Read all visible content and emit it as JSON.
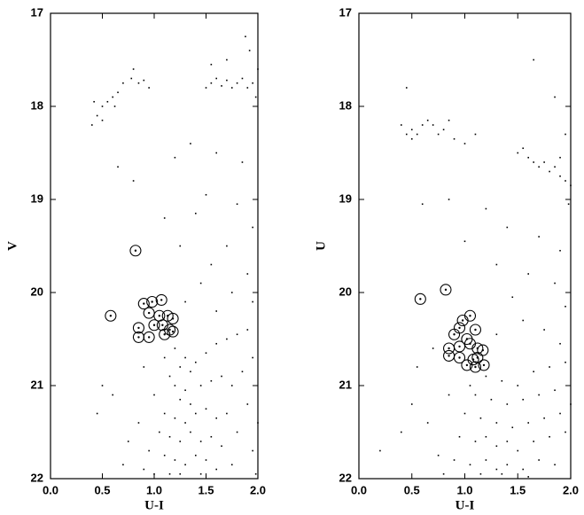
{
  "chart_data": [
    {
      "type": "scatter",
      "x_label": "U-I",
      "y_label": "V",
      "xlim": [
        0,
        2
      ],
      "ylim": [
        17,
        22
      ],
      "y_inverted": true,
      "xticks": [
        {
          "value": 0,
          "label": "0.0"
        },
        0.5,
        {
          "value": 1,
          "label": "1.0"
        },
        1.5,
        {
          "value": 2,
          "label": "2.0"
        }
      ],
      "yticks": [
        17,
        18,
        19,
        20,
        21,
        22
      ],
      "series": [
        {
          "color": "#000000",
          "marker": "dot",
          "x": [
            0.4,
            0.45,
            0.5,
            0.55,
            0.6,
            0.65,
            0.5,
            0.42,
            0.7,
            0.78,
            0.8,
            0.85,
            0.9,
            0.95,
            0.62,
            1.5,
            1.55,
            1.6,
            1.65,
            1.7,
            1.75,
            1.8,
            1.85,
            1.9,
            1.95,
            1.88,
            1.92,
            1.7,
            1.55,
            2.0,
            1.98,
            0.65,
            0.8,
            1.2,
            1.35,
            1.6,
            1.85,
            1.5,
            1.8,
            1.1,
            1.4,
            1.95,
            1.7,
            1.25,
            1.9,
            1.55,
            1.45,
            1.75,
            1.95,
            1.6,
            1.3,
            1.2,
            1.3,
            1.25,
            1.35,
            1.4,
            1.5,
            1.6,
            1.7,
            1.8,
            1.9,
            1.15,
            1.2,
            1.3,
            1.25,
            1.35,
            1.45,
            1.55,
            1.65,
            1.75,
            1.85,
            1.1,
            1.2,
            1.3,
            1.4,
            1.5,
            1.6,
            1.7,
            1.9,
            1.05,
            1.15,
            1.25,
            1.35,
            1.45,
            1.55,
            1.65,
            1.8,
            0.95,
            1.1,
            1.2,
            1.3,
            1.4,
            1.5,
            1.6,
            1.75,
            0.9,
            1.0,
            1.15,
            1.25,
            1.45,
            0.85,
            0.75,
            0.7,
            0.45,
            0.5,
            0.6,
            1.0,
            0.9,
            1.1,
            1.95,
            2.0,
            1.95,
            1.98
          ],
          "y": [
            18.2,
            18.1,
            18.0,
            17.95,
            17.9,
            17.85,
            18.15,
            17.95,
            17.75,
            17.7,
            17.6,
            17.75,
            17.72,
            17.8,
            18.0,
            17.8,
            17.75,
            17.7,
            17.78,
            17.72,
            17.8,
            17.75,
            17.7,
            17.8,
            17.75,
            17.25,
            17.4,
            17.5,
            17.55,
            17.6,
            17.9,
            18.65,
            18.8,
            18.55,
            18.4,
            18.5,
            18.6,
            18.95,
            19.05,
            19.2,
            19.15,
            19.3,
            19.5,
            19.5,
            19.8,
            19.7,
            19.9,
            20.0,
            20.1,
            20.2,
            20.1,
            20.6,
            20.7,
            20.8,
            20.85,
            20.75,
            20.65,
            20.55,
            20.5,
            20.45,
            20.4,
            20.9,
            21.0,
            21.05,
            21.15,
            21.2,
            21.0,
            20.95,
            20.9,
            21.0,
            20.85,
            21.3,
            21.35,
            21.4,
            21.3,
            21.25,
            21.35,
            21.3,
            21.2,
            21.5,
            21.55,
            21.6,
            21.5,
            21.6,
            21.55,
            21.65,
            21.5,
            21.7,
            21.75,
            21.8,
            21.85,
            21.75,
            21.8,
            21.9,
            21.85,
            21.9,
            21.95,
            21.95,
            21.95,
            21.95,
            21.4,
            21.6,
            21.85,
            21.3,
            21.0,
            21.1,
            21.1,
            20.8,
            20.7,
            20.7,
            21.4,
            21.7,
            21.95
          ]
        },
        {
          "color": "#000000",
          "marker": "circled-dot",
          "x": [
            0.82,
            0.58,
            0.9,
            0.98,
            1.07,
            0.95,
            1.05,
            1.13,
            1.18,
            0.85,
            1.0,
            1.08,
            1.15,
            0.85,
            0.95,
            1.1,
            1.18
          ],
          "y": [
            19.55,
            20.25,
            20.12,
            20.1,
            20.08,
            20.22,
            20.25,
            20.25,
            20.28,
            20.38,
            20.35,
            20.35,
            20.4,
            20.48,
            20.48,
            20.45,
            20.42
          ]
        }
      ]
    },
    {
      "type": "scatter",
      "x_label": "U-I",
      "y_label": "U",
      "xlim": [
        0,
        2
      ],
      "ylim": [
        17,
        22
      ],
      "y_inverted": true,
      "xticks": [
        {
          "value": 0,
          "label": "0.0"
        },
        0.5,
        {
          "value": 1,
          "label": "1.0"
        },
        1.5,
        {
          "value": 2,
          "label": "2.0"
        }
      ],
      "yticks": [
        17,
        18,
        19,
        20,
        21,
        22
      ],
      "series": [
        {
          "color": "#000000",
          "marker": "dot",
          "x": [
            0.4,
            0.45,
            0.5,
            0.5,
            0.55,
            0.6,
            0.65,
            0.7,
            0.75,
            0.8,
            0.85,
            0.9,
            1.0,
            0.45,
            1.1,
            1.5,
            1.55,
            1.6,
            1.65,
            1.7,
            1.75,
            1.8,
            1.85,
            1.9,
            1.95,
            2.0,
            1.9,
            1.95,
            1.85,
            1.65,
            1.98,
            0.85,
            1.2,
            0.6,
            1.4,
            1.0,
            1.7,
            1.9,
            1.3,
            1.6,
            1.85,
            1.45,
            1.95,
            1.55,
            1.75,
            1.3,
            1.9,
            0.7,
            0.55,
            1.2,
            1.35,
            1.5,
            1.65,
            1.8,
            1.95,
            1.1,
            1.25,
            1.4,
            1.55,
            1.7,
            1.85,
            1.0,
            1.15,
            1.3,
            1.45,
            1.6,
            1.75,
            1.9,
            0.95,
            1.1,
            1.2,
            1.3,
            1.4,
            1.5,
            1.65,
            1.8,
            1.95,
            0.9,
            1.05,
            1.2,
            1.3,
            1.4,
            1.55,
            1.7,
            1.85,
            0.8,
            1.15,
            1.35,
            1.6,
            0.5,
            0.4,
            0.2,
            0.65,
            0.85,
            0.75,
            1.05,
            2.0
          ],
          "y": [
            18.2,
            18.3,
            18.35,
            18.25,
            18.3,
            18.2,
            18.15,
            18.2,
            18.3,
            18.25,
            18.15,
            18.35,
            18.4,
            17.8,
            18.3,
            18.5,
            18.45,
            18.55,
            18.6,
            18.65,
            18.6,
            18.7,
            18.65,
            18.75,
            18.8,
            18.85,
            18.55,
            18.3,
            17.9,
            17.5,
            19.05,
            19.0,
            19.1,
            19.05,
            19.3,
            19.45,
            19.4,
            19.55,
            19.7,
            19.8,
            19.9,
            20.05,
            20.15,
            20.3,
            20.4,
            20.45,
            20.55,
            20.6,
            20.8,
            20.9,
            20.95,
            21.0,
            20.85,
            20.8,
            20.75,
            21.1,
            21.15,
            21.2,
            21.15,
            21.1,
            21.05,
            21.3,
            21.35,
            21.4,
            21.45,
            21.4,
            21.35,
            21.3,
            21.55,
            21.6,
            21.55,
            21.65,
            21.6,
            21.7,
            21.6,
            21.55,
            21.5,
            21.8,
            21.85,
            21.8,
            21.9,
            21.85,
            21.9,
            21.8,
            21.85,
            21.95,
            21.95,
            21.95,
            21.98,
            21.2,
            21.5,
            21.7,
            21.4,
            21.1,
            21.75,
            21.0,
            21.2
          ]
        },
        {
          "color": "#000000",
          "marker": "circled-dot",
          "x": [
            0.58,
            0.82,
            1.05,
            0.98,
            0.95,
            1.1,
            0.9,
            1.02,
            0.85,
            0.95,
            1.05,
            1.12,
            1.17,
            0.85,
            0.95,
            1.08,
            1.12,
            1.02,
            1.1,
            1.18
          ],
          "y": [
            20.07,
            19.97,
            20.25,
            20.3,
            20.38,
            20.4,
            20.45,
            20.5,
            20.6,
            20.58,
            20.55,
            20.6,
            20.62,
            20.68,
            20.7,
            20.72,
            20.7,
            20.78,
            20.8,
            20.78
          ]
        }
      ]
    }
  ]
}
